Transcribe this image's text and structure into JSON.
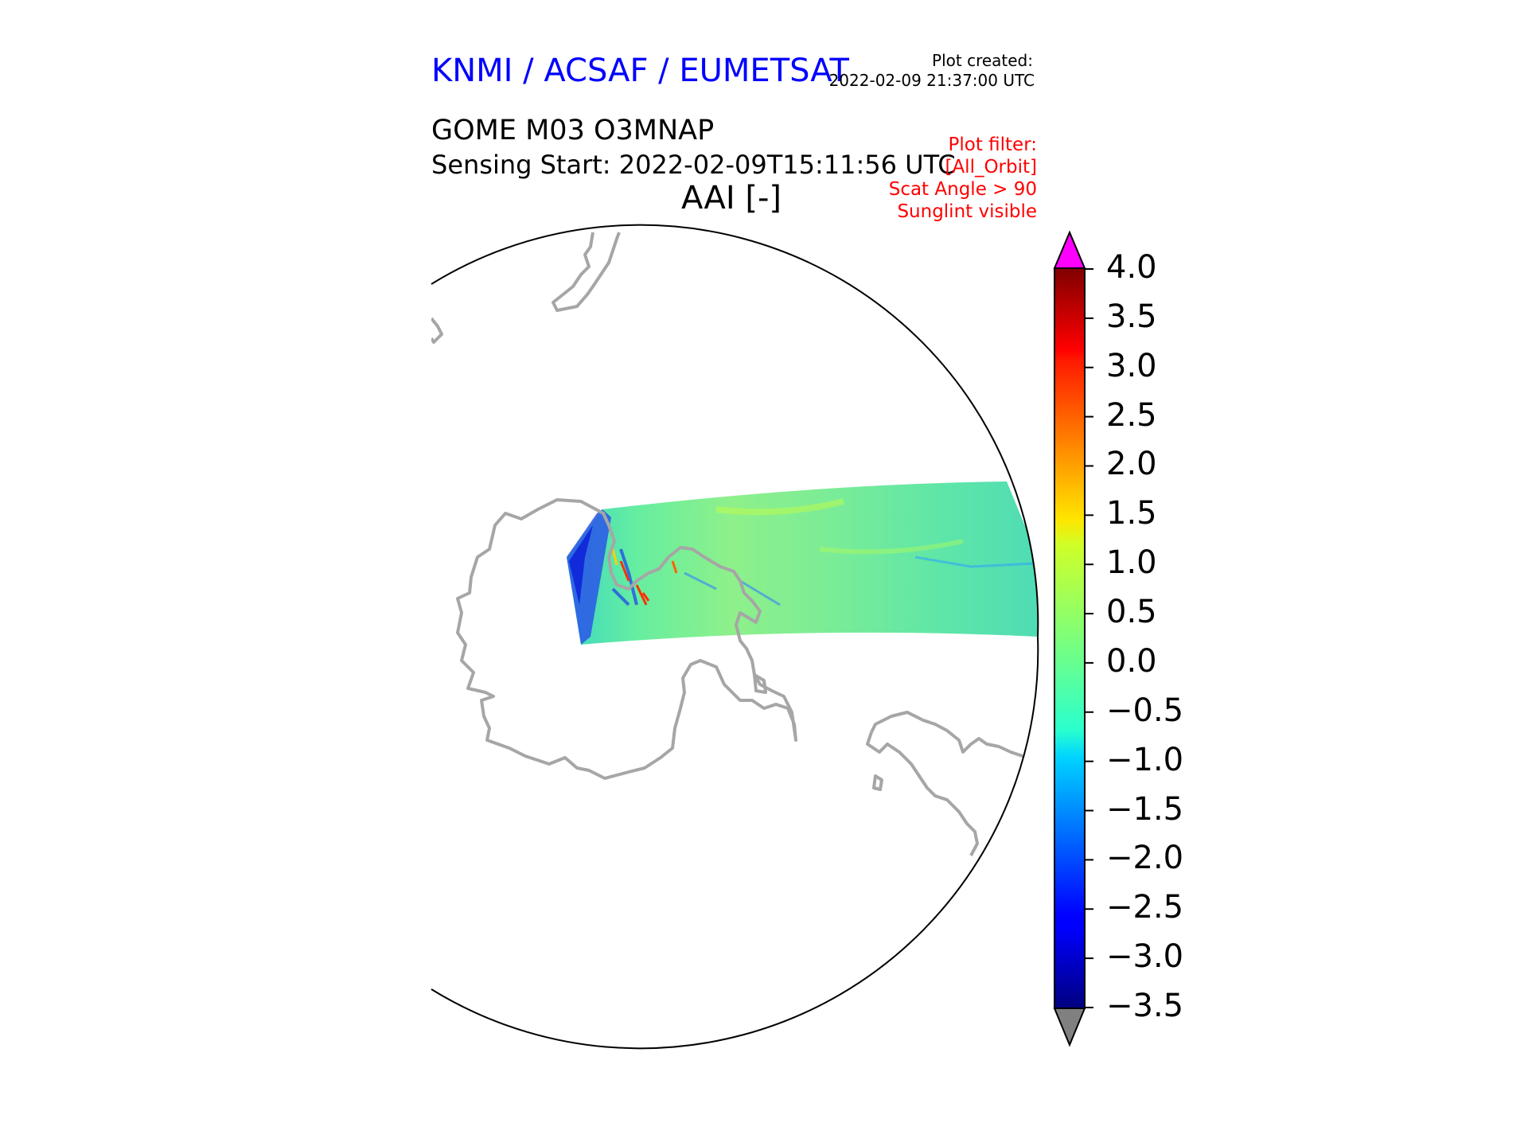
{
  "header": {
    "organisation": "KNMI / ACSAF / EUMETSAT",
    "plot_created_label": "Plot created:",
    "plot_created_value": "2022-02-09 21:37:00 UTC",
    "product": "GOME M03 O3MNAP",
    "sensing_start": "Sensing Start: 2022-02-09T15:11:56 UTC",
    "field_title": "AAI [-]"
  },
  "filters": {
    "lines": [
      "Plot filter:",
      "[All_Orbit]",
      "Scat Angle > 90",
      "Sunglint visible"
    ]
  },
  "colorbar": {
    "ticks": [
      "4.0",
      "3.5",
      "3.0",
      "2.5",
      "2.0",
      "1.5",
      "1.0",
      "0.5",
      "0.0",
      "−0.5",
      "−1.0",
      "−1.5",
      "−2.0",
      "−2.5",
      "−3.0",
      "−3.5"
    ],
    "min": -3.5,
    "max": 4.0,
    "over_color": "#ff00ff",
    "under_color": "#808080",
    "colormap": "jet"
  },
  "map": {
    "projection": "orthographic (south polar view)",
    "coastline_color": "#a6a6a6",
    "swath_dominant_color": "#55e6a6"
  }
}
